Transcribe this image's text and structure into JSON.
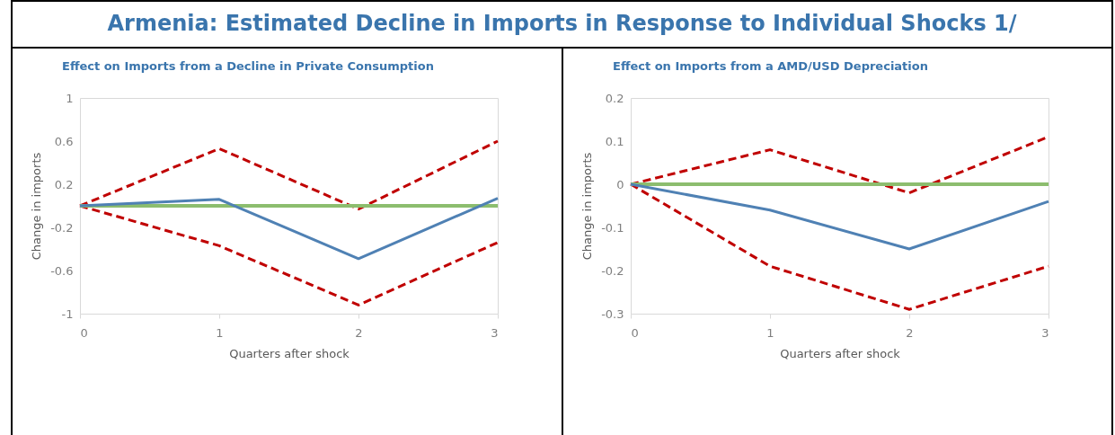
{
  "chart_data": [
    {
      "type": "line",
      "title": "Armenia: Estimated Decline in Imports in Response to Individual Shocks 1/",
      "subtitle": "Effect on Imports from a Decline in Private Consumption",
      "xlabel": "Quarters after shock",
      "ylabel": "Change in imports",
      "x": [
        0,
        1,
        2,
        3
      ],
      "xlim": [
        0,
        3
      ],
      "xticks": [
        0,
        1,
        2,
        3
      ],
      "ylim": [
        -1,
        1
      ],
      "yticks": [
        -1,
        -0.6,
        -0.2,
        0.2,
        0.6,
        1
      ],
      "grid": false,
      "series": [
        {
          "color": "#c00000",
          "line_style": "dashed",
          "values": [
            0,
            0.53,
            -0.03,
            0.6
          ]
        },
        {
          "color": "#c00000",
          "line_style": "dashed",
          "values": [
            0,
            -0.37,
            -0.92,
            -0.34
          ]
        },
        {
          "color": "#8cbd6e",
          "line_style": "solid",
          "values": [
            0,
            0,
            0,
            0
          ]
        },
        {
          "color": "#4f81b4",
          "line_style": "solid",
          "values": [
            0,
            0.06,
            -0.49,
            0.07
          ]
        }
      ]
    },
    {
      "type": "line",
      "subtitle": "Effect on Imports from a AMD/USD Depreciation",
      "xlabel": "Quarters after shock",
      "ylabel": "Change in imports",
      "x": [
        0,
        1,
        2,
        3
      ],
      "xlim": [
        0,
        3
      ],
      "xticks": [
        0,
        1,
        2,
        3
      ],
      "ylim": [
        -0.3,
        0.2
      ],
      "yticks": [
        -0.3,
        -0.2,
        -0.1,
        0,
        0.1,
        0.2
      ],
      "grid": false,
      "series": [
        {
          "color": "#c00000",
          "line_style": "dashed",
          "values": [
            0,
            0.08,
            -0.02,
            0.11
          ]
        },
        {
          "color": "#c00000",
          "line_style": "dashed",
          "values": [
            0,
            -0.19,
            -0.29,
            -0.19
          ]
        },
        {
          "color": "#8cbd6e",
          "line_style": "solid",
          "values": [
            0,
            0,
            0,
            0
          ]
        },
        {
          "color": "#4f81b4",
          "line_style": "solid",
          "values": [
            0,
            -0.06,
            -0.15,
            -0.04
          ]
        }
      ]
    }
  ]
}
